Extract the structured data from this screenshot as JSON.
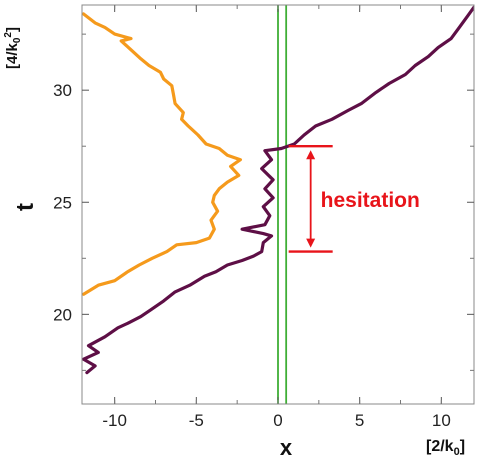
{
  "chart_data": {
    "type": "line",
    "title": "",
    "xlabel": "x",
    "xunit": "[2/k",
    "xunit_sub": "0",
    "xunit_end": "]",
    "ylabel": "t",
    "yunit": "[4/k",
    "yunit_sub": "0",
    "yunit_sup": "2",
    "yunit_end": "]",
    "xlim": [
      -12,
      12
    ],
    "ylim": [
      16,
      33.8
    ],
    "xticks": [
      -10,
      -5,
      0,
      5,
      10
    ],
    "xtick_labels": [
      "-10",
      "-5",
      "0",
      "5",
      "10"
    ],
    "yticks": [
      20,
      25,
      30
    ],
    "ytick_labels": [
      "20",
      "25",
      "30"
    ],
    "grid": false,
    "legend": "none",
    "colors": {
      "purple": "#5e0f46",
      "orange": "#f59a1c",
      "green": "#3fae36",
      "red": "#e8141a"
    },
    "barrier_lines_x": [
      0,
      0.5
    ],
    "series": [
      {
        "color": "#5e0f46",
        "points": [
          [
            -11.7,
            17.4
          ],
          [
            -11.2,
            17.7
          ],
          [
            -11.9,
            18.0
          ],
          [
            -11.0,
            18.3
          ],
          [
            -11.6,
            18.6
          ],
          [
            -10.6,
            19.0
          ],
          [
            -9.8,
            19.4
          ],
          [
            -9.2,
            19.6
          ],
          [
            -8.4,
            19.9
          ],
          [
            -7.8,
            20.2
          ],
          [
            -7.0,
            20.6
          ],
          [
            -6.3,
            21.0
          ],
          [
            -5.4,
            21.3
          ],
          [
            -4.5,
            21.7
          ],
          [
            -3.8,
            21.9
          ],
          [
            -3.1,
            22.2
          ],
          [
            -2.2,
            22.4
          ],
          [
            -1.5,
            22.6
          ],
          [
            -1.0,
            22.8
          ],
          [
            -0.9,
            23.2
          ],
          [
            -0.4,
            23.5
          ],
          [
            -0.9,
            23.6
          ],
          [
            -2.2,
            23.8
          ],
          [
            -0.8,
            24.0
          ],
          [
            -0.5,
            24.4
          ],
          [
            -0.9,
            24.8
          ],
          [
            -0.3,
            25.2
          ],
          [
            -0.8,
            25.6
          ],
          [
            -0.3,
            26.0
          ],
          [
            -1.0,
            26.5
          ],
          [
            -0.4,
            26.9
          ],
          [
            -0.8,
            27.3
          ],
          [
            0.2,
            27.4
          ],
          [
            1.0,
            27.6
          ],
          [
            1.6,
            28.0
          ],
          [
            2.3,
            28.4
          ],
          [
            3.3,
            28.7
          ],
          [
            4.3,
            29.1
          ],
          [
            5.1,
            29.4
          ],
          [
            6.0,
            29.9
          ],
          [
            6.8,
            30.3
          ],
          [
            7.8,
            30.7
          ],
          [
            8.4,
            31.1
          ],
          [
            9.2,
            31.5
          ],
          [
            9.8,
            31.9
          ],
          [
            10.6,
            32.3
          ],
          [
            11.1,
            32.8
          ],
          [
            11.6,
            33.3
          ],
          [
            12.0,
            33.7
          ]
        ]
      },
      {
        "color": "#f59a1c",
        "points": [
          [
            -11.9,
            20.9
          ],
          [
            -11.0,
            21.3
          ],
          [
            -10.0,
            21.5
          ],
          [
            -9.2,
            21.9
          ],
          [
            -8.5,
            22.2
          ],
          [
            -7.7,
            22.5
          ],
          [
            -6.8,
            22.8
          ],
          [
            -6.2,
            23.1
          ],
          [
            -5.0,
            23.2
          ],
          [
            -4.2,
            23.4
          ],
          [
            -3.9,
            23.8
          ],
          [
            -4.1,
            24.2
          ],
          [
            -3.7,
            24.6
          ],
          [
            -4.0,
            25.0
          ],
          [
            -3.9,
            25.3
          ],
          [
            -3.6,
            25.6
          ],
          [
            -3.1,
            25.9
          ],
          [
            -2.4,
            26.2
          ],
          [
            -2.9,
            26.6
          ],
          [
            -2.3,
            26.9
          ],
          [
            -3.1,
            27.1
          ],
          [
            -3.6,
            27.4
          ],
          [
            -4.4,
            27.6
          ],
          [
            -4.9,
            28.0
          ],
          [
            -5.5,
            28.4
          ],
          [
            -5.9,
            28.7
          ],
          [
            -5.8,
            29.0
          ],
          [
            -6.3,
            29.4
          ],
          [
            -6.4,
            29.8
          ],
          [
            -6.5,
            30.2
          ],
          [
            -7.0,
            30.5
          ],
          [
            -7.2,
            30.8
          ],
          [
            -7.9,
            31.1
          ],
          [
            -8.4,
            31.4
          ],
          [
            -9.0,
            31.8
          ],
          [
            -9.6,
            32.2
          ],
          [
            -9.0,
            32.3
          ],
          [
            -10.0,
            32.5
          ],
          [
            -10.6,
            32.8
          ],
          [
            -11.2,
            33.0
          ],
          [
            -11.9,
            33.4
          ]
        ]
      }
    ],
    "annotation": {
      "text": "hesitation",
      "t_start": 22.8,
      "t_end": 27.5,
      "x": 2.0
    }
  }
}
